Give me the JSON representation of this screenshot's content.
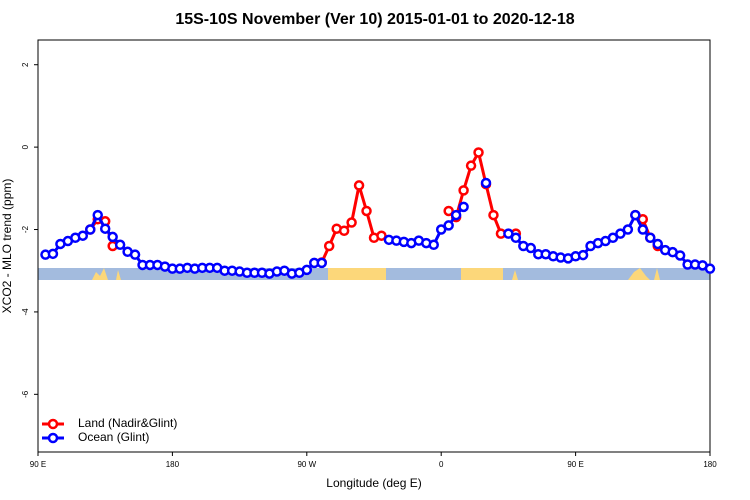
{
  "chart_data": {
    "type": "line",
    "title": "15S-10S November (Ver 10)   2015-01-01 to 2020-12-18",
    "xlabel": "Longitude (deg E)",
    "ylabel": "XCO2 - MLO trend (ppm)",
    "xlim": [
      90,
      540
    ],
    "ylim": [
      -7.4,
      2.6
    ],
    "xticks": [
      {
        "value": 90,
        "label": "90 E"
      },
      {
        "value": 180,
        "label": "180"
      },
      {
        "value": 270,
        "label": "90 W"
      },
      {
        "value": 360,
        "label": "0"
      },
      {
        "value": 450,
        "label": "90 E"
      },
      {
        "value": 540,
        "label": "180"
      }
    ],
    "yticks": [
      2,
      0,
      -2,
      -4,
      -6
    ],
    "legend": "bottomleft",
    "x": [
      95,
      100,
      105,
      110,
      115,
      120,
      125,
      130,
      135,
      140,
      145,
      150,
      155,
      160,
      165,
      170,
      175,
      180,
      185,
      190,
      195,
      200,
      205,
      210,
      215,
      220,
      225,
      230,
      235,
      240,
      245,
      250,
      255,
      260,
      265,
      270,
      275,
      280,
      285,
      290,
      295,
      300,
      305,
      310,
      315,
      320,
      325,
      330,
      335,
      340,
      345,
      350,
      355,
      360,
      365,
      370,
      375,
      380,
      385,
      390,
      395,
      400,
      405,
      410,
      415,
      420,
      425,
      430,
      435,
      440,
      445,
      450,
      455,
      460,
      465,
      470,
      475,
      480,
      485,
      490,
      495,
      500,
      505,
      510,
      515,
      520,
      525,
      530,
      535,
      540
    ],
    "series": [
      {
        "name": "Land (Nadir&Glint)",
        "color": "#ff0000",
        "values": [
          null,
          null,
          null,
          null,
          null,
          null,
          -2.0,
          -1.75,
          -1.8,
          -2.4,
          null,
          null,
          null,
          null,
          null,
          null,
          null,
          null,
          null,
          null,
          null,
          null,
          null,
          null,
          null,
          null,
          null,
          null,
          null,
          null,
          null,
          null,
          null,
          null,
          null,
          null,
          null,
          -2.8,
          -2.4,
          -1.98,
          -2.03,
          -1.83,
          -0.93,
          -1.55,
          -2.2,
          -2.15,
          null,
          null,
          null,
          null,
          null,
          null,
          null,
          null,
          -1.55,
          -1.7,
          -1.05,
          -0.45,
          -0.13,
          -0.9,
          -1.65,
          -2.1,
          null,
          -2.1,
          null,
          null,
          null,
          null,
          null,
          null,
          null,
          null,
          null,
          null,
          null,
          null,
          null,
          null,
          null,
          -1.65,
          -1.75,
          -2.2,
          -2.4,
          null,
          null,
          null,
          null,
          null,
          null,
          null
        ]
      },
      {
        "name": "Ocean (Glint)",
        "color": "#0000ff",
        "values": [
          -2.61,
          -2.59,
          -2.35,
          -2.28,
          -2.2,
          -2.15,
          -2.0,
          -1.65,
          -1.98,
          -2.18,
          -2.37,
          -2.54,
          -2.61,
          -2.86,
          -2.86,
          -2.86,
          -2.9,
          -2.95,
          -2.95,
          -2.93,
          -2.95,
          -2.93,
          -2.93,
          -2.93,
          -3.0,
          -3.0,
          -3.02,
          -3.05,
          -3.05,
          -3.05,
          -3.07,
          -3.02,
          -3.0,
          -3.07,
          -3.05,
          -2.98,
          -2.81,
          -2.81,
          null,
          null,
          null,
          null,
          null,
          null,
          null,
          null,
          -2.25,
          -2.27,
          -2.3,
          -2.33,
          -2.27,
          -2.33,
          -2.37,
          -2.0,
          -1.9,
          -1.65,
          -1.45,
          null,
          null,
          -0.87,
          null,
          null,
          -2.1,
          -2.2,
          -2.4,
          -2.45,
          -2.6,
          -2.6,
          -2.65,
          -2.68,
          -2.7,
          -2.65,
          -2.62,
          -2.4,
          -2.33,
          -2.28,
          -2.2,
          -2.1,
          -2.0,
          -1.65,
          -2.0,
          -2.2,
          -2.35,
          -2.5,
          -2.55,
          -2.63,
          -2.85,
          -2.85,
          -2.87,
          -2.95
        ]
      }
    ]
  }
}
